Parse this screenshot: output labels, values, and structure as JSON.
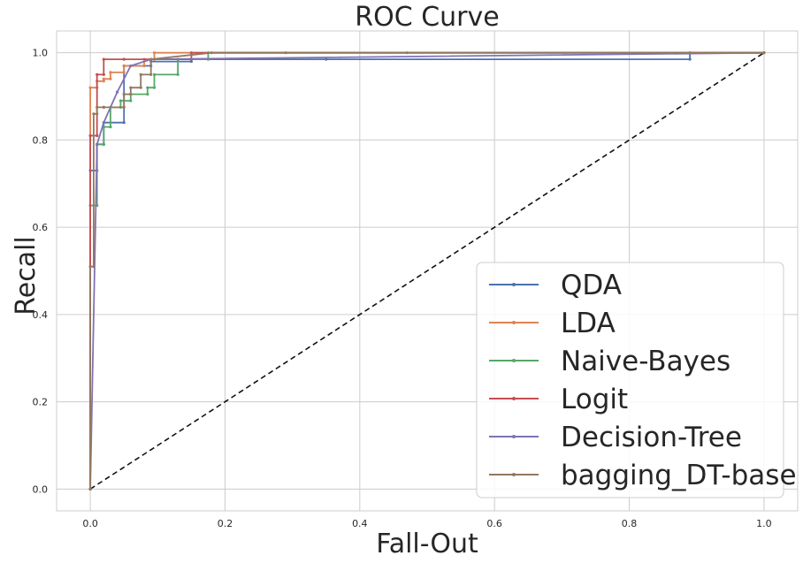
{
  "chart_data": {
    "type": "line",
    "title": "ROC Curve",
    "xlabel": "Fall-Out",
    "ylabel": "Recall",
    "xlim": [
      -0.05,
      1.05
    ],
    "ylim": [
      -0.05,
      1.05
    ],
    "xticks": [
      "0.0",
      "0.2",
      "0.4",
      "0.6",
      "0.8",
      "1.0"
    ],
    "yticks": [
      "0.0",
      "0.2",
      "0.4",
      "0.6",
      "0.8",
      "1.0"
    ],
    "grid": true,
    "legend_position": "lower-right",
    "diagonal": {
      "x": [
        0,
        1
      ],
      "y": [
        0,
        1
      ],
      "style": "dashed",
      "color": "#111111"
    },
    "series": [
      {
        "name": "QDA",
        "color": "#4c72b0",
        "x": [
          0.0,
          0.0,
          0.01,
          0.01,
          0.02,
          0.02,
          0.05,
          0.05,
          0.09,
          0.09,
          0.15,
          0.15,
          0.35,
          0.89,
          0.89,
          1.0
        ],
        "y": [
          0.0,
          0.73,
          0.73,
          0.79,
          0.79,
          0.84,
          0.84,
          0.97,
          0.97,
          0.98,
          0.98,
          0.985,
          0.985,
          0.985,
          1.0,
          1.0
        ]
      },
      {
        "name": "LDA",
        "color": "#dd8452",
        "x": [
          0.0,
          0.0,
          0.01,
          0.01,
          0.02,
          0.02,
          0.03,
          0.03,
          0.05,
          0.05,
          0.08,
          0.08,
          0.095,
          0.095,
          1.0
        ],
        "y": [
          0.0,
          0.92,
          0.92,
          0.935,
          0.935,
          0.94,
          0.94,
          0.955,
          0.955,
          0.97,
          0.97,
          0.985,
          0.985,
          1.0,
          1.0
        ]
      },
      {
        "name": "Naive-Bayes",
        "color": "#55a868",
        "x": [
          0.0,
          0.0,
          0.01,
          0.01,
          0.02,
          0.02,
          0.03,
          0.03,
          0.045,
          0.045,
          0.06,
          0.06,
          0.085,
          0.085,
          0.095,
          0.095,
          0.13,
          0.13,
          0.175,
          0.175,
          1.0
        ],
        "y": [
          0.0,
          0.65,
          0.65,
          0.79,
          0.79,
          0.83,
          0.83,
          0.875,
          0.875,
          0.89,
          0.89,
          0.905,
          0.905,
          0.92,
          0.92,
          0.95,
          0.95,
          0.985,
          0.985,
          1.0,
          1.0
        ]
      },
      {
        "name": "Logit",
        "color": "#c44e52",
        "x": [
          0.0,
          0.0,
          0.01,
          0.01,
          0.02,
          0.02,
          0.05,
          0.05,
          0.15,
          0.15,
          1.0
        ],
        "y": [
          0.0,
          0.81,
          0.81,
          0.95,
          0.95,
          0.985,
          0.985,
          0.985,
          0.985,
          1.0,
          1.0
        ]
      },
      {
        "name": "Decision-Tree",
        "color": "#8172b3",
        "x": [
          0.0,
          0.01,
          0.02,
          0.04,
          0.06,
          0.09,
          1.0
        ],
        "y": [
          0.0,
          0.79,
          0.84,
          0.91,
          0.97,
          0.985,
          1.0
        ]
      },
      {
        "name": "bagging_DT-base",
        "color": "#937860",
        "x": [
          0.0,
          0.0,
          0.005,
          0.005,
          0.01,
          0.01,
          0.02,
          0.02,
          0.05,
          0.05,
          0.06,
          0.06,
          0.075,
          0.075,
          0.09,
          0.09,
          0.18,
          0.29,
          0.47,
          1.0
        ],
        "y": [
          0.0,
          0.51,
          0.51,
          0.86,
          0.86,
          0.875,
          0.875,
          0.875,
          0.875,
          0.905,
          0.905,
          0.92,
          0.92,
          0.95,
          0.95,
          0.985,
          1.0,
          1.0,
          1.0,
          1.0
        ]
      }
    ]
  }
}
